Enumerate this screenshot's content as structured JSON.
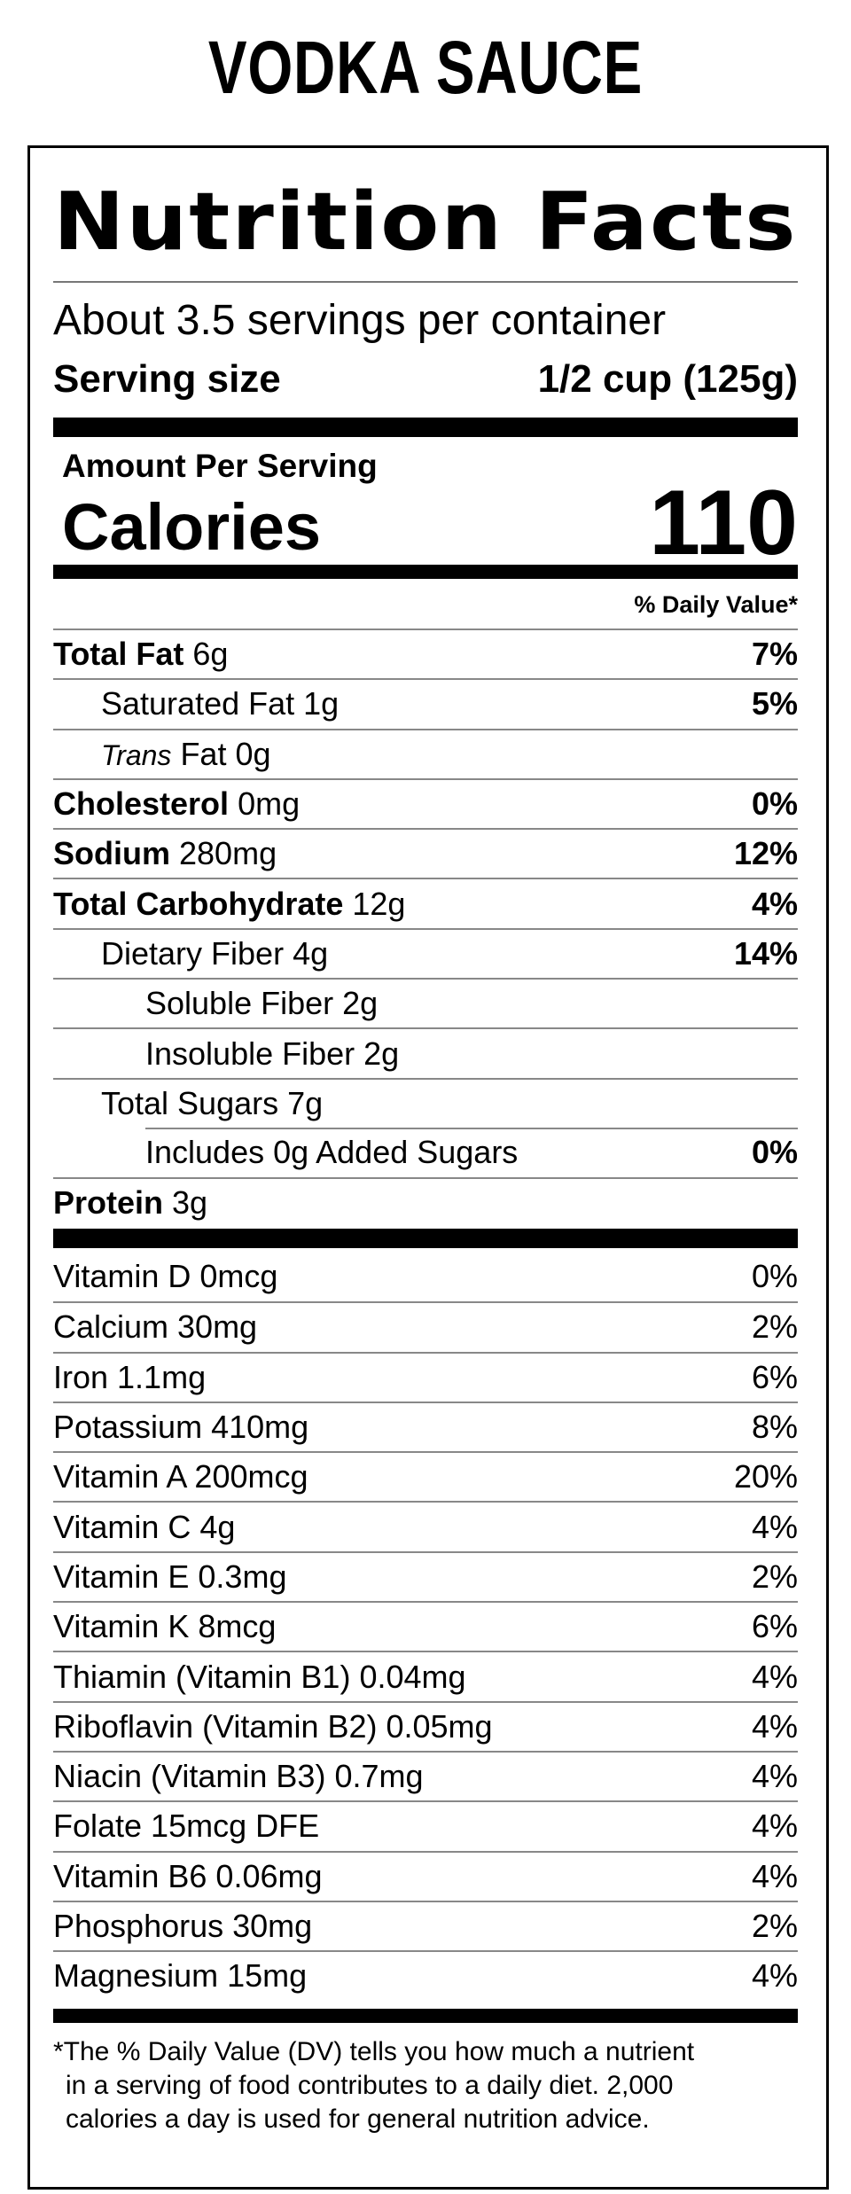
{
  "title": "VODKA SAUCE",
  "label": {
    "heading": "Nutrition Facts",
    "servings_per_container": "About 3.5 servings per container",
    "serving_size_label": "Serving size",
    "serving_size_value": "1/2 cup (125g)",
    "amount_per_serving": "Amount Per Serving",
    "calories_label": "Calories",
    "calories_value": "110",
    "daily_value_header": "% Daily Value*"
  },
  "nutrients": [
    {
      "name": "Total Fat",
      "amount": "6g",
      "dv": "7%",
      "bold": true,
      "indent": 0
    },
    {
      "name": "Saturated Fat",
      "amount": "1g",
      "dv": "5%",
      "bold": false,
      "indent": 1
    },
    {
      "name": "Trans",
      "name2": "Fat",
      "amount": "0g",
      "dv": "",
      "bold": false,
      "indent": 1,
      "italic": true
    },
    {
      "name": "Cholesterol",
      "amount": "0mg",
      "dv": "0%",
      "bold": true,
      "indent": 0
    },
    {
      "name": "Sodium",
      "amount": "280mg",
      "dv": "12%",
      "bold": true,
      "indent": 0
    },
    {
      "name": "Total Carbohydrate",
      "amount": "12g",
      "dv": "4%",
      "bold": true,
      "indent": 0
    },
    {
      "name": "Dietary Fiber",
      "amount": "4g",
      "dv": "14%",
      "bold": false,
      "indent": 1
    },
    {
      "name": "Soluble Fiber",
      "amount": "2g",
      "dv": "",
      "bold": false,
      "indent": 2
    },
    {
      "name": "Insoluble Fiber",
      "amount": "2g",
      "dv": "",
      "bold": false,
      "indent": 2
    },
    {
      "name": "Total Sugars",
      "amount": "7g",
      "dv": "",
      "bold": false,
      "indent": 1
    },
    {
      "name": "Includes 0g Added Sugars",
      "amount": "",
      "dv": "0%",
      "bold": false,
      "indent": 2
    },
    {
      "name": "Protein",
      "amount": "3g",
      "dv": "",
      "bold": true,
      "indent": 0
    }
  ],
  "vitamins": [
    {
      "name": "Vitamin D 0mcg",
      "dv": "0%"
    },
    {
      "name": "Calcium 30mg",
      "dv": "2%"
    },
    {
      "name": "Iron 1.1mg",
      "dv": "6%"
    },
    {
      "name": "Potassium 410mg",
      "dv": "8%"
    },
    {
      "name": "Vitamin A 200mcg",
      "dv": "20%"
    },
    {
      "name": "Vitamin C 4g",
      "dv": "4%"
    },
    {
      "name": "Vitamin E 0.3mg",
      "dv": "2%"
    },
    {
      "name": "Vitamin K 8mcg",
      "dv": "6%"
    },
    {
      "name": "Thiamin (Vitamin B1) 0.04mg",
      "dv": "4%"
    },
    {
      "name": "Riboflavin (Vitamin B2) 0.05mg",
      "dv": "4%"
    },
    {
      "name": "Niacin (Vitamin B3) 0.7mg",
      "dv": "4%"
    },
    {
      "name": "Folate 15mcg DFE",
      "dv": "4%"
    },
    {
      "name": "Vitamin B6 0.06mg",
      "dv": "4%"
    },
    {
      "name": "Phosphorus 30mg",
      "dv": "2%"
    },
    {
      "name": "Magnesium 15mg",
      "dv": "4%"
    }
  ],
  "footnote": [
    "*The % Daily Value (DV) tells you how much a nutrient",
    "in a serving of food contributes to a daily diet. 2,000",
    "calories a day is used for general nutrition advice."
  ]
}
